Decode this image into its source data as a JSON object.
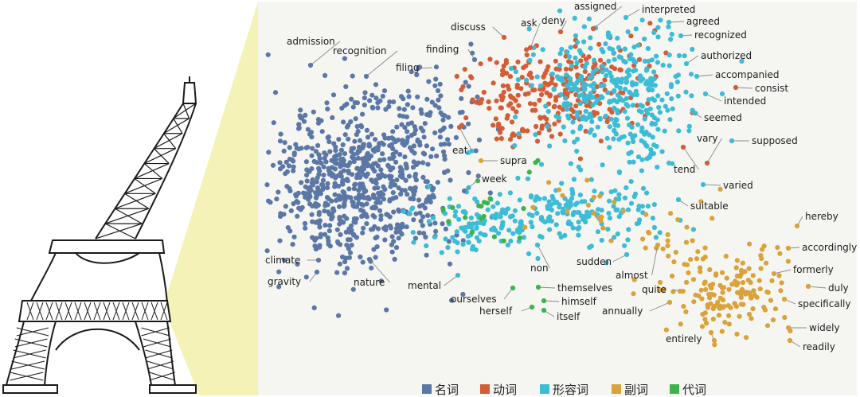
{
  "colors": {
    "noun": "#5b77a6",
    "verb": "#d35d35",
    "adjective": "#3cbcd6",
    "adverb": "#d9a23a",
    "pronoun": "#3db34a",
    "panel": "#f5f5f2",
    "beam": "#f5f2b8",
    "leader": "#8a8a8a"
  },
  "chart_data": {
    "type": "scatter",
    "series": [
      {
        "key": "noun",
        "name": "名词",
        "color": "#5b77a6"
      },
      {
        "key": "verb",
        "name": "动词",
        "color": "#d35d35"
      },
      {
        "key": "adjective",
        "name": "形容词",
        "color": "#3cbcd6"
      },
      {
        "key": "adverb",
        "name": "副词",
        "color": "#d9a23a"
      },
      {
        "key": "pronoun",
        "name": "代词",
        "color": "#3db34a"
      }
    ],
    "legend": {
      "position": "bottom",
      "entries": [
        "名词",
        "动词",
        "形容词",
        "副词",
        "代词"
      ]
    },
    "annotations": [
      {
        "text": "admission",
        "series": "noun"
      },
      {
        "text": "recognition",
        "series": "noun"
      },
      {
        "text": "finding",
        "series": "noun"
      },
      {
        "text": "filing",
        "series": "noun"
      },
      {
        "text": "climate",
        "series": "noun"
      },
      {
        "text": "gravity",
        "series": "noun"
      },
      {
        "text": "nature",
        "series": "noun"
      },
      {
        "text": "discuss",
        "series": "verb"
      },
      {
        "text": "ask",
        "series": "verb"
      },
      {
        "text": "deny",
        "series": "verb"
      },
      {
        "text": "assigned",
        "series": "verb"
      },
      {
        "text": "eat",
        "series": "verb"
      },
      {
        "text": "consist",
        "series": "verb"
      },
      {
        "text": "vary",
        "series": "verb"
      },
      {
        "text": "tend",
        "series": "verb"
      },
      {
        "text": "interpreted",
        "series": "adjective"
      },
      {
        "text": "agreed",
        "series": "adjective"
      },
      {
        "text": "recognized",
        "series": "adjective"
      },
      {
        "text": "authorized",
        "series": "adjective"
      },
      {
        "text": "accompanied",
        "series": "adjective"
      },
      {
        "text": "intended",
        "series": "adjective"
      },
      {
        "text": "seemed",
        "series": "adjective"
      },
      {
        "text": "supposed",
        "series": "adjective"
      },
      {
        "text": "varied",
        "series": "adjective"
      },
      {
        "text": "suitable",
        "series": "adjective"
      },
      {
        "text": "sudden",
        "series": "adjective"
      },
      {
        "text": "mental",
        "series": "adjective"
      },
      {
        "text": "non",
        "series": "adjective"
      },
      {
        "text": "week",
        "series": "noun"
      },
      {
        "text": "supra",
        "series": "adverb"
      },
      {
        "text": "almost",
        "series": "adverb"
      },
      {
        "text": "quite",
        "series": "adverb"
      },
      {
        "text": "annually",
        "series": "adverb"
      },
      {
        "text": "entirely",
        "series": "adverb"
      },
      {
        "text": "hereby",
        "series": "adverb"
      },
      {
        "text": "accordingly",
        "series": "adverb"
      },
      {
        "text": "formerly",
        "series": "adverb"
      },
      {
        "text": "duly",
        "series": "adverb"
      },
      {
        "text": "specifically",
        "series": "adverb"
      },
      {
        "text": "widely",
        "series": "adverb"
      },
      {
        "text": "readily",
        "series": "adverb"
      },
      {
        "text": "ourselves",
        "series": "pronoun"
      },
      {
        "text": "themselves",
        "series": "pronoun"
      },
      {
        "text": "herself",
        "series": "pronoun"
      },
      {
        "text": "himself",
        "series": "pronoun"
      },
      {
        "text": "itself",
        "series": "pronoun"
      }
    ],
    "title": "",
    "xlabel": "",
    "ylabel": "",
    "axes_visible": false,
    "grid": false
  }
}
